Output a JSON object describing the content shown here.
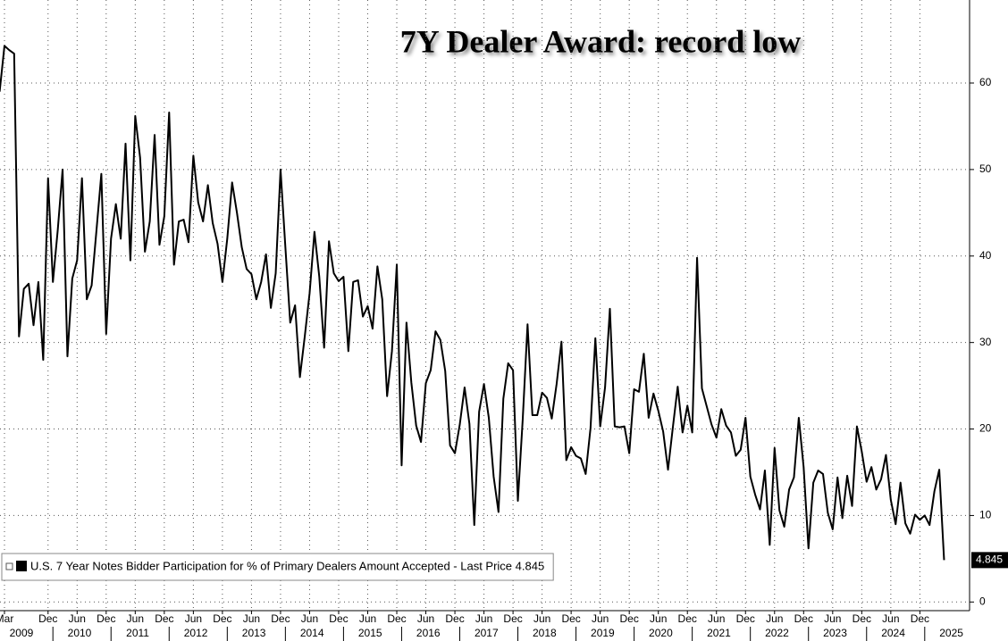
{
  "chart_data": {
    "type": "line",
    "title": "7Y Dealer Award: record low",
    "x": [
      "2009-02",
      "2009-03",
      "2009-04",
      "2009-05",
      "2009-06",
      "2009-07",
      "2009-08",
      "2009-09",
      "2009-10",
      "2009-11",
      "2009-12",
      "2010-01",
      "2010-02",
      "2010-03",
      "2010-04",
      "2010-05",
      "2010-06",
      "2010-07",
      "2010-08",
      "2010-09",
      "2010-10",
      "2010-11",
      "2010-12",
      "2011-01",
      "2011-02",
      "2011-03",
      "2011-04",
      "2011-05",
      "2011-06",
      "2011-07",
      "2011-08",
      "2011-09",
      "2011-10",
      "2011-11",
      "2011-12",
      "2012-01",
      "2012-02",
      "2012-03",
      "2012-04",
      "2012-05",
      "2012-06",
      "2012-07",
      "2012-08",
      "2012-09",
      "2012-10",
      "2012-11",
      "2012-12",
      "2013-01",
      "2013-02",
      "2013-03",
      "2013-04",
      "2013-05",
      "2013-06",
      "2013-07",
      "2013-08",
      "2013-09",
      "2013-10",
      "2013-11",
      "2013-12",
      "2014-01",
      "2014-02",
      "2014-03",
      "2014-04",
      "2014-05",
      "2014-06",
      "2014-07",
      "2014-08",
      "2014-09",
      "2014-10",
      "2014-11",
      "2014-12",
      "2015-01",
      "2015-02",
      "2015-03",
      "2015-04",
      "2015-05",
      "2015-06",
      "2015-07",
      "2015-08",
      "2015-09",
      "2015-10",
      "2015-11",
      "2015-12",
      "2016-01",
      "2016-02",
      "2016-03",
      "2016-04",
      "2016-05",
      "2016-06",
      "2016-07",
      "2016-08",
      "2016-09",
      "2016-10",
      "2016-11",
      "2016-12",
      "2017-01",
      "2017-02",
      "2017-03",
      "2017-04",
      "2017-05",
      "2017-06",
      "2017-07",
      "2017-08",
      "2017-09",
      "2017-10",
      "2017-11",
      "2017-12",
      "2018-01",
      "2018-02",
      "2018-03",
      "2018-04",
      "2018-05",
      "2018-06",
      "2018-07",
      "2018-08",
      "2018-09",
      "2018-10",
      "2018-11",
      "2018-12",
      "2019-01",
      "2019-02",
      "2019-03",
      "2019-04",
      "2019-05",
      "2019-06",
      "2019-07",
      "2019-08",
      "2019-09",
      "2019-10",
      "2019-11",
      "2019-12",
      "2020-01",
      "2020-02",
      "2020-03",
      "2020-04",
      "2020-05",
      "2020-06",
      "2020-07",
      "2020-08",
      "2020-09",
      "2020-10",
      "2020-11",
      "2020-12",
      "2021-01",
      "2021-02",
      "2021-03",
      "2021-04",
      "2021-05",
      "2021-06",
      "2021-07",
      "2021-08",
      "2021-09",
      "2021-10",
      "2021-11",
      "2021-12",
      "2022-01",
      "2022-02",
      "2022-03",
      "2022-04",
      "2022-05",
      "2022-06",
      "2022-07",
      "2022-08",
      "2022-09",
      "2022-10",
      "2022-11",
      "2022-12",
      "2023-01",
      "2023-02",
      "2023-03",
      "2023-04",
      "2023-05",
      "2023-06",
      "2023-07",
      "2023-08",
      "2023-09",
      "2023-10",
      "2023-11",
      "2023-12",
      "2024-01",
      "2024-02",
      "2024-03",
      "2024-04",
      "2024-05",
      "2024-06",
      "2024-07",
      "2024-08",
      "2024-09",
      "2024-10",
      "2024-11",
      "2024-12",
      "2025-01",
      "2025-02",
      "2025-03",
      "2025-04",
      "2025-05"
    ],
    "series": [
      {
        "name": "U.S. 7 Year Notes Bidder Participation for % of Primary Dealers Amount Accepted - Last Price 4.845",
        "color": "#000000",
        "values": [
          59,
          64.3,
          63.8,
          63.4,
          30.7,
          36.2,
          36.8,
          32,
          37,
          28,
          49,
          37,
          43,
          50,
          28.4,
          37.4,
          39.5,
          49,
          35,
          36.6,
          43,
          49.5,
          31,
          42,
          46,
          42,
          53,
          39.5,
          56.2,
          51.4,
          40.5,
          44,
          54,
          41.3,
          44.6,
          56.6,
          39,
          44,
          44.2,
          41.6,
          51.6,
          46.2,
          44,
          48.2,
          43.8,
          41.4,
          37,
          42,
          48.5,
          45,
          41,
          38.5,
          37.9,
          35,
          37,
          40.2,
          34,
          38,
          50,
          41,
          32.3,
          34.3,
          26,
          30.7,
          35.7,
          42.8,
          37.6,
          29.4,
          41.7,
          38,
          37.1,
          37.6,
          29,
          37,
          37.2,
          33,
          34.2,
          31.6,
          38.8,
          35,
          23.8,
          29,
          39,
          15.8,
          32.3,
          25.4,
          20.4,
          18.5,
          25.3,
          26.8,
          31.3,
          30.3,
          26.7,
          18.1,
          17.2,
          20.5,
          24.8,
          20.6,
          8.9,
          22,
          25.2,
          21.3,
          14.5,
          10.4,
          23.5,
          27.6,
          26.8,
          11.7,
          21.1,
          32.1,
          21.6,
          21.6,
          24.2,
          23.6,
          21.2,
          25.2,
          30.1,
          16.4,
          17.9,
          16.9,
          16.6,
          14.8,
          20.1,
          30.5,
          20.3,
          24.8,
          33.9,
          20.3,
          20.2,
          20.3,
          17.2,
          24.6,
          24.3,
          28.7,
          21.3,
          24.1,
          22.1,
          19.7,
          15.3,
          20.2,
          24.9,
          19.6,
          22.7,
          19.6,
          39.8,
          24.7,
          22.6,
          20.5,
          19,
          22.3,
          20.4,
          19.6,
          16.9,
          17.6,
          21.3,
          14.5,
          12.4,
          10.7,
          15.2,
          6.6,
          17.8,
          10.6,
          8.7,
          13,
          14.4,
          21.3,
          15.6,
          6.2,
          13.8,
          15.2,
          14.8,
          10.3,
          8.4,
          14.4,
          9.7,
          14.6,
          11.1,
          20.3,
          17.4,
          13.9,
          15.6,
          13,
          14.2,
          17,
          11.8,
          9,
          13.8,
          9.1,
          7.9,
          10.1,
          9.5,
          10,
          8.9,
          12.8,
          15.3,
          4.845
        ]
      }
    ],
    "last_price_label": {
      "value": 4.845,
      "label": "4.845"
    },
    "ylim": [
      -1,
      69.6
    ],
    "yticks": [
      0,
      10,
      20,
      30,
      40,
      50,
      60
    ],
    "xticks": [
      {
        "value": "2009-03",
        "label": "Mar"
      },
      {
        "value": "2009-12",
        "label": "Dec"
      },
      {
        "value": "2010-06",
        "label": "Jun"
      },
      {
        "value": "2010-12",
        "label": "Dec"
      },
      {
        "value": "2011-06",
        "label": "Jun"
      },
      {
        "value": "2011-12",
        "label": "Dec"
      },
      {
        "value": "2012-06",
        "label": "Jun"
      },
      {
        "value": "2012-12",
        "label": "Dec"
      },
      {
        "value": "2013-06",
        "label": "Jun"
      },
      {
        "value": "2013-12",
        "label": "Dec"
      },
      {
        "value": "2014-06",
        "label": "Jun"
      },
      {
        "value": "2014-12",
        "label": "Dec"
      },
      {
        "value": "2015-06",
        "label": "Jun"
      },
      {
        "value": "2015-12",
        "label": "Dec"
      },
      {
        "value": "2016-06",
        "label": "Jun"
      },
      {
        "value": "2016-12",
        "label": "Dec"
      },
      {
        "value": "2017-06",
        "label": "Jun"
      },
      {
        "value": "2017-12",
        "label": "Dec"
      },
      {
        "value": "2018-06",
        "label": "Jun"
      },
      {
        "value": "2018-12",
        "label": "Dec"
      },
      {
        "value": "2019-06",
        "label": "Jun"
      },
      {
        "value": "2019-12",
        "label": "Dec"
      },
      {
        "value": "2020-06",
        "label": "Jun"
      },
      {
        "value": "2020-12",
        "label": "Dec"
      },
      {
        "value": "2021-06",
        "label": "Jun"
      },
      {
        "value": "2021-12",
        "label": "Dec"
      },
      {
        "value": "2022-06",
        "label": "Jun"
      },
      {
        "value": "2022-12",
        "label": "Dec"
      },
      {
        "value": "2023-06",
        "label": "Jun"
      },
      {
        "value": "2023-12",
        "label": "Dec"
      },
      {
        "value": "2024-06",
        "label": "Jun"
      },
      {
        "value": "2024-12",
        "label": "Dec"
      }
    ],
    "year_labels": [
      "2009",
      "2010",
      "2011",
      "2012",
      "2013",
      "2014",
      "2015",
      "2016",
      "2017",
      "2018",
      "2019",
      "2020",
      "2021",
      "2022",
      "2023",
      "2024",
      "2025"
    ],
    "grid": true,
    "legend": "lower left"
  }
}
